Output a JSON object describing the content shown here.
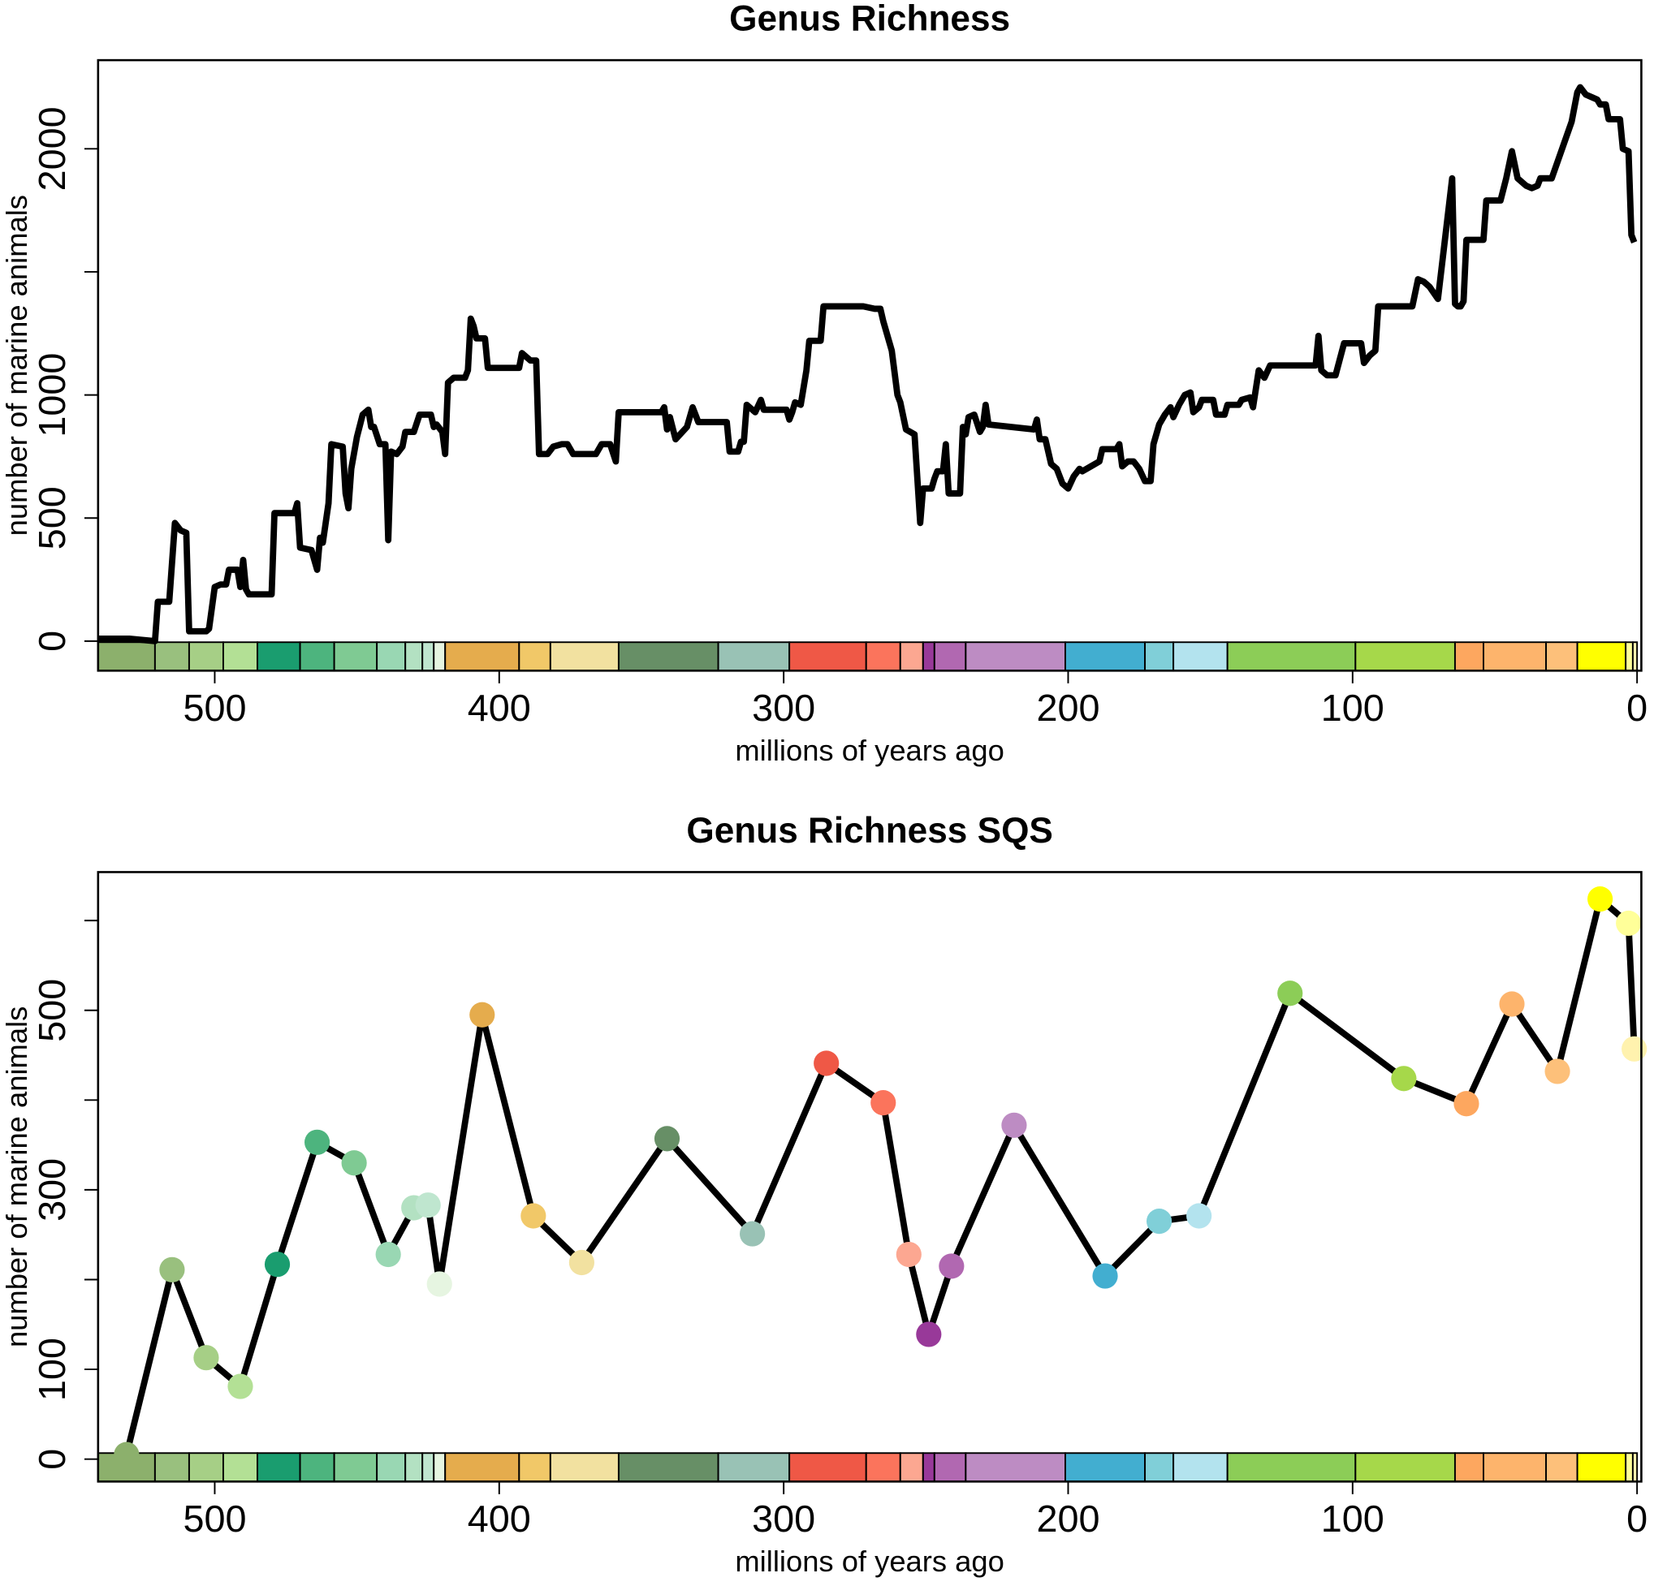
{
  "chart_data": [
    {
      "type": "line",
      "title": "Genus Richness",
      "xlabel": "millions of years ago",
      "ylabel": "number of marine animals",
      "color": "#000000",
      "x": [
        541,
        530,
        521,
        520,
        516,
        514,
        512,
        510,
        509,
        503,
        502,
        500,
        498,
        496,
        495,
        492,
        491,
        490,
        489,
        488,
        480,
        479,
        472,
        471,
        470,
        466,
        464,
        463,
        462,
        460,
        459,
        455,
        454,
        453,
        452,
        450,
        448,
        446,
        445,
        444,
        442,
        440,
        439,
        438,
        436,
        434,
        433,
        430,
        428,
        424,
        423,
        422,
        420,
        419,
        418,
        416,
        412,
        411,
        410,
        409,
        408,
        405,
        404,
        393,
        392,
        389,
        387,
        386,
        383,
        381,
        378,
        376,
        374,
        366,
        364,
        361,
        359,
        358,
        343,
        342,
        341,
        340,
        338,
        334,
        332,
        330,
        320,
        319,
        316,
        315,
        314,
        313,
        310,
        308,
        307,
        299,
        298,
        297,
        296,
        294,
        292,
        291,
        287,
        286,
        272,
        268,
        266,
        265,
        262,
        260,
        259,
        257,
        254,
        252,
        251,
        248,
        247,
        246,
        244,
        243,
        242,
        238,
        237,
        236,
        235,
        233,
        231,
        230,
        229,
        228,
        212,
        211,
        210,
        208,
        206,
        204,
        202,
        200,
        198,
        196,
        195,
        192,
        189,
        188,
        183,
        182,
        181,
        179,
        177,
        175,
        173,
        171,
        170,
        168,
        166,
        164,
        163,
        161,
        159,
        157,
        156,
        154,
        153,
        149,
        148,
        145,
        144,
        140,
        139,
        136,
        135,
        133,
        131,
        129,
        124,
        113,
        112,
        111,
        109,
        106,
        103,
        97,
        96,
        94,
        92,
        91,
        79,
        77,
        75,
        73,
        70,
        65,
        64,
        63,
        62,
        61,
        60,
        54,
        53,
        48,
        46,
        44,
        42,
        39,
        37,
        35,
        34,
        30,
        23,
        21,
        20,
        18,
        16,
        14,
        13,
        11,
        10,
        6,
        5,
        3,
        2,
        1
      ],
      "values": [
        10,
        10,
        0,
        160,
        160,
        480,
        450,
        440,
        40,
        40,
        50,
        220,
        230,
        230,
        290,
        290,
        220,
        330,
        210,
        190,
        190,
        520,
        520,
        560,
        380,
        370,
        290,
        420,
        400,
        560,
        800,
        790,
        600,
        540,
        700,
        830,
        920,
        940,
        870,
        870,
        800,
        800,
        410,
        770,
        760,
        790,
        850,
        850,
        920,
        920,
        870,
        880,
        850,
        760,
        1050,
        1070,
        1070,
        1100,
        1310,
        1280,
        1230,
        1230,
        1110,
        1110,
        1170,
        1140,
        1140,
        760,
        760,
        790,
        800,
        800,
        760,
        760,
        800,
        800,
        730,
        930,
        930,
        950,
        860,
        910,
        820,
        870,
        950,
        890,
        890,
        770,
        770,
        810,
        810,
        960,
        930,
        980,
        940,
        940,
        900,
        930,
        970,
        960,
        1100,
        1220,
        1220,
        1360,
        1360,
        1350,
        1350,
        1300,
        1180,
        1000,
        970,
        860,
        840,
        480,
        620,
        620,
        660,
        690,
        690,
        800,
        600,
        600,
        870,
        840,
        910,
        920,
        850,
        870,
        960,
        880,
        860,
        900,
        820,
        820,
        720,
        700,
        640,
        620,
        670,
        700,
        690,
        710,
        730,
        780,
        780,
        800,
        710,
        730,
        730,
        700,
        650,
        650,
        800,
        880,
        920,
        950,
        910,
        960,
        1000,
        1010,
        930,
        950,
        980,
        980,
        920,
        920,
        960,
        960,
        980,
        990,
        950,
        1100,
        1070,
        1120,
        1120,
        1120,
        1240,
        1100,
        1080,
        1080,
        1210,
        1210,
        1130,
        1160,
        1180,
        1360,
        1360,
        1470,
        1460,
        1440,
        1390,
        1880,
        1370,
        1360,
        1360,
        1380,
        1630,
        1630,
        1790,
        1790,
        1880,
        1990,
        1880,
        1850,
        1840,
        1850,
        1880,
        1880,
        2110,
        2230,
        2250,
        2220,
        2210,
        2200,
        2180,
        2180,
        2120,
        2120,
        2000,
        1990,
        1650,
        1620
      ],
      "xlim": [
        541,
        -1.5
      ],
      "xticks": [
        500,
        400,
        300,
        200,
        100,
        0
      ],
      "ylim": [
        -120,
        2360
      ],
      "yticks": [
        0,
        500,
        1000,
        {
          "value": 1500,
          "label": null
        },
        2000
      ]
    },
    {
      "type": "line",
      "title": "Genus Richness SQS",
      "xlabel": "millions of years ago",
      "ylabel": "number of marine animals",
      "color": "#000000",
      "x": [
        531,
        515,
        503,
        491,
        478,
        464,
        451,
        439,
        430,
        425,
        421,
        406,
        388,
        371,
        341,
        311,
        285,
        265,
        256,
        249,
        241,
        219,
        187,
        168,
        154,
        122,
        82,
        60,
        44,
        28,
        13,
        3,
        1
      ],
      "values": [
        5,
        211,
        113,
        81,
        217,
        353,
        330,
        228,
        280,
        283,
        195,
        495,
        271,
        219,
        357,
        251,
        441,
        397,
        228,
        139,
        215,
        372,
        204,
        265,
        271,
        519,
        424,
        396,
        507,
        432,
        624,
        597,
        457
      ],
      "point_colors": [
        "#8cb06c",
        "#99c07e",
        "#a6cf86",
        "#b3e095",
        "#1a9d6f",
        "#4db47e",
        "#7fca93",
        "#99d7b3",
        "#b3e1c2",
        "#bfe6cf",
        "#e6f5e1",
        "#e5ac4d",
        "#f1c868",
        "#f2e1a0",
        "#678f66",
        "#99c2b5",
        "#ef5846",
        "#fb745c",
        "#fca791",
        "#983999",
        "#b168b1",
        "#bd8cc3",
        "#42aed0",
        "#80cfd8",
        "#b3e3ee",
        "#8ccd57",
        "#a6d84a",
        "#fda75f",
        "#fdb46c",
        "#fdc07a",
        "#ffff00",
        "#ffff99",
        "#fff2ae"
      ],
      "xlim": [
        541,
        -1.5
      ],
      "xticks": [
        500,
        400,
        300,
        200,
        100,
        0
      ],
      "ylim": [
        -25,
        654
      ],
      "yticks": [
        0,
        100,
        {
          "value": 200,
          "label": null
        },
        300,
        {
          "value": 400,
          "label": null
        },
        500,
        {
          "value": 600,
          "label": null
        }
      ]
    }
  ],
  "time_scale": [
    {
      "start": 541,
      "end": 521,
      "color": "#8cb06c"
    },
    {
      "start": 521,
      "end": 509,
      "color": "#99c07e"
    },
    {
      "start": 509,
      "end": 497,
      "color": "#a6cf86"
    },
    {
      "start": 497,
      "end": 485,
      "color": "#b3e095"
    },
    {
      "start": 485,
      "end": 470,
      "color": "#1a9d6f"
    },
    {
      "start": 470,
      "end": 458,
      "color": "#4db47e"
    },
    {
      "start": 458,
      "end": 443,
      "color": "#7fca93"
    },
    {
      "start": 443,
      "end": 433,
      "color": "#99d7b3"
    },
    {
      "start": 433,
      "end": 427,
      "color": "#b3e1c2"
    },
    {
      "start": 427,
      "end": 423,
      "color": "#bfe6cf"
    },
    {
      "start": 423,
      "end": 419,
      "color": "#e6f5e1"
    },
    {
      "start": 419,
      "end": 393,
      "color": "#e5ac4d"
    },
    {
      "start": 393,
      "end": 382,
      "color": "#f1c868"
    },
    {
      "start": 382,
      "end": 358,
      "color": "#f2e1a0"
    },
    {
      "start": 358,
      "end": 323,
      "color": "#678f66"
    },
    {
      "start": 323,
      "end": 298,
      "color": "#99c2b5"
    },
    {
      "start": 298,
      "end": 271,
      "color": "#ef5846"
    },
    {
      "start": 271,
      "end": 259,
      "color": "#fb745c"
    },
    {
      "start": 259,
      "end": 251,
      "color": "#fca791"
    },
    {
      "start": 251,
      "end": 247,
      "color": "#983999"
    },
    {
      "start": 247,
      "end": 236,
      "color": "#b168b1"
    },
    {
      "start": 236,
      "end": 201,
      "color": "#bd8cc3"
    },
    {
      "start": 201,
      "end": 173,
      "color": "#42aed0"
    },
    {
      "start": 173,
      "end": 163,
      "color": "#80cfd8"
    },
    {
      "start": 163,
      "end": 144,
      "color": "#b3e3ee"
    },
    {
      "start": 144,
      "end": 99,
      "color": "#8ccd57"
    },
    {
      "start": 99,
      "end": 64,
      "color": "#a6d84a"
    },
    {
      "start": 64,
      "end": 54,
      "color": "#fda75f"
    },
    {
      "start": 54,
      "end": 32,
      "color": "#fdb46c"
    },
    {
      "start": 32,
      "end": 21,
      "color": "#fdc07a"
    },
    {
      "start": 21,
      "end": 4,
      "color": "#ffff00"
    },
    {
      "start": 4,
      "end": 1.5,
      "color": "#ffff99"
    },
    {
      "start": 1.5,
      "end": 0,
      "color": "#fff2ae"
    }
  ]
}
